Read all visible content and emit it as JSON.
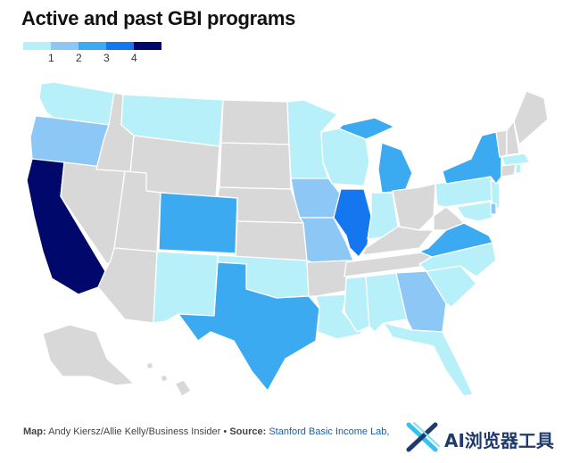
{
  "title": "Active and past GBI programs",
  "legend": {
    "labels": [
      "1",
      "2",
      "3",
      "4"
    ],
    "colors": [
      "#b8f0fa",
      "#8cc7f5",
      "#3caaf0",
      "#1477ef",
      "#00096b"
    ]
  },
  "map_colors": {
    "none": "#d8d8d8",
    "level0": "#b8f0fa",
    "level1": "#8cc7f5",
    "level2": "#3caaf0",
    "level3": "#1477ef",
    "level4": "#00096b"
  },
  "footer": {
    "map_label": "Map:",
    "map_credit": "Andy Kiersz/Allie Kelly/Business Insider",
    "bullet": "•",
    "source_label": "Source:",
    "source_text": "Stanford Basic Income Lab, ne"
  },
  "watermark": {
    "text": "AI浏览器工具",
    "logo_icon": "x-cross-logo-icon"
  }
}
